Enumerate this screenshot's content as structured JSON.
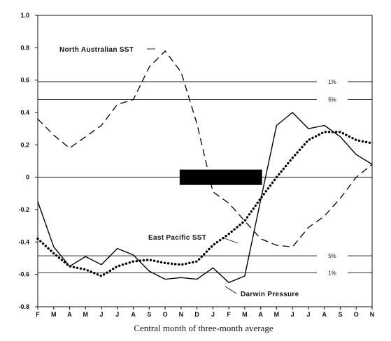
{
  "chart_data": {
    "type": "line",
    "xlabel": "Central month of three-month average",
    "ylabel": "",
    "ylim": [
      -0.8,
      1.0
    ],
    "yticks": [
      "1.0",
      "0.8",
      "0.6",
      "0.4",
      "0.2",
      "0",
      "-0.2",
      "-0.4",
      "-0.6",
      "-0.8"
    ],
    "categories": [
      "F",
      "M",
      "A",
      "M",
      "J",
      "J",
      "A",
      "S",
      "O",
      "N",
      "D",
      "J",
      "F",
      "M",
      "A",
      "M",
      "J",
      "J",
      "A",
      "S",
      "O",
      "N"
    ],
    "series": [
      {
        "name": "North Australian SST",
        "style": "dashed",
        "values": [
          0.36,
          0.26,
          0.18,
          0.25,
          0.32,
          0.45,
          0.48,
          0.68,
          0.78,
          0.65,
          0.33,
          -0.09,
          -0.16,
          -0.27,
          -0.38,
          -0.42,
          -0.43,
          -0.31,
          -0.24,
          -0.13,
          0.0,
          0.08
        ]
      },
      {
        "name": "East Pacific SST",
        "style": "dotted",
        "values": [
          -0.38,
          -0.47,
          -0.55,
          -0.57,
          -0.61,
          -0.55,
          -0.52,
          -0.51,
          -0.53,
          -0.54,
          -0.52,
          -0.42,
          -0.35,
          -0.27,
          -0.13,
          0.0,
          0.12,
          0.23,
          0.28,
          0.28,
          0.23,
          0.21
        ]
      },
      {
        "name": "Darwin Pressure",
        "style": "solid",
        "values": [
          -0.15,
          -0.43,
          -0.55,
          -0.49,
          -0.54,
          -0.44,
          -0.48,
          -0.58,
          -0.63,
          -0.62,
          -0.63,
          -0.56,
          -0.65,
          -0.61,
          -0.14,
          0.32,
          0.4,
          0.3,
          0.32,
          0.25,
          0.14,
          0.08
        ]
      }
    ],
    "significance_lines": [
      {
        "label": "1%",
        "value": 0.59
      },
      {
        "label": "5%",
        "value": 0.48
      },
      {
        "label": "5%",
        "value": -0.485
      },
      {
        "label": "1%",
        "value": -0.59
      }
    ],
    "zero_line": 0,
    "bar": {
      "from_category": 9,
      "to_category": 14,
      "value": 0
    },
    "annotations": {
      "north_australian": "North Australian SST",
      "east_pacific": "East Pacific SST",
      "darwin": "Darwin Pressure"
    }
  }
}
